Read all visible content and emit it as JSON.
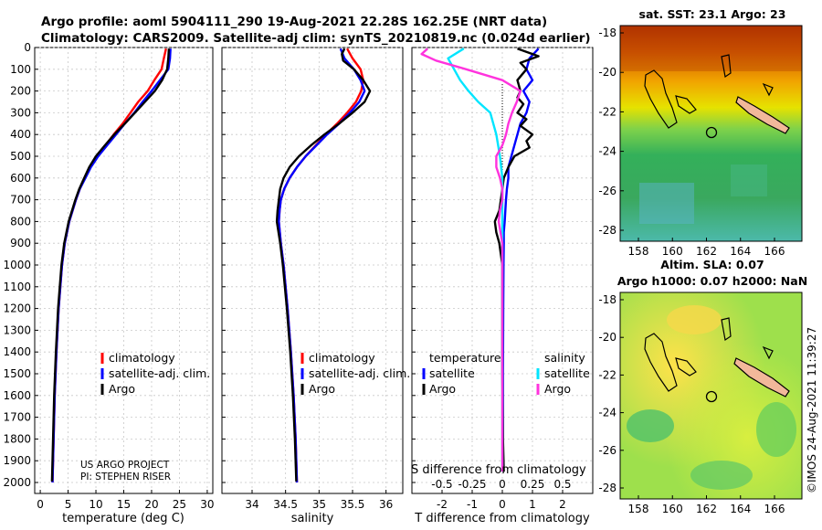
{
  "header": {
    "title_line1": "Argo profile: aoml 5904111_290 19-Aug-2021 22.28S 162.25E (NRT data)",
    "title_line2": "Climatology: CARS2009. Satellite-adj clim: synTS_20210819.nc (0.024d earlier)"
  },
  "credits": {
    "line1": "US ARGO PROJECT",
    "line2": "PI: STEPHEN RISER"
  },
  "timestamp": "©IMOS 24-Aug-2021 11:39:27",
  "colors": {
    "climatology": "#ff0000",
    "satellite": "#0000ff",
    "argo": "#000000",
    "sat_salinity": "#00e5ff",
    "argo_salinity": "#ff33dd",
    "land": "#f2b89a"
  },
  "depth_axis": {
    "ticks": [
      0,
      100,
      200,
      300,
      400,
      500,
      600,
      700,
      800,
      900,
      1000,
      1100,
      1200,
      1300,
      1400,
      1500,
      1600,
      1700,
      1800,
      1900,
      2000
    ],
    "range": [
      0,
      2000
    ]
  },
  "chart_data": [
    {
      "type": "line",
      "panel": "temperature",
      "xlabel": "temperature (deg C)",
      "xlim": [
        -1,
        31
      ],
      "xticks": [
        0,
        5,
        10,
        15,
        20,
        25,
        30
      ],
      "legend": [
        "climatology",
        "satellite-adj. clim.",
        "Argo"
      ],
      "series": [
        {
          "name": "climatology",
          "color": "#ff0000",
          "depth": [
            5,
            50,
            100,
            150,
            200,
            250,
            300,
            350,
            400,
            450,
            500,
            550,
            600,
            650,
            700,
            800,
            900,
            1000,
            1200,
            1400,
            1600,
            1800,
            2000
          ],
          "values": [
            22.6,
            22.2,
            21.8,
            20.5,
            19.3,
            17.6,
            16.2,
            14.8,
            13.2,
            11.7,
            10.2,
            9.0,
            8.0,
            7.1,
            6.4,
            5.2,
            4.4,
            3.9,
            3.3,
            2.9,
            2.6,
            2.4,
            2.2
          ]
        },
        {
          "name": "satellite-adj. clim.",
          "color": "#0000ff",
          "depth": [
            5,
            50,
            100,
            150,
            200,
            250,
            300,
            350,
            400,
            450,
            500,
            550,
            600,
            650,
            700,
            800,
            900,
            1000,
            1200,
            1400,
            1600,
            1800,
            2000
          ],
          "values": [
            23.4,
            23.3,
            23.0,
            21.5,
            20.0,
            18.4,
            16.9,
            15.2,
            13.6,
            12.0,
            10.4,
            9.1,
            8.1,
            7.1,
            6.4,
            5.2,
            4.4,
            3.9,
            3.3,
            2.9,
            2.6,
            2.4,
            2.2
          ]
        },
        {
          "name": "Argo",
          "color": "#000000",
          "depth": [
            5,
            50,
            100,
            150,
            200,
            250,
            300,
            350,
            400,
            450,
            500,
            550,
            600,
            650,
            700,
            800,
            900,
            1000,
            1200,
            1400,
            1600,
            1800,
            1995
          ],
          "values": [
            23.1,
            23.0,
            22.8,
            21.9,
            20.6,
            18.8,
            17.0,
            15.2,
            13.3,
            11.6,
            10.0,
            8.8,
            7.9,
            7.0,
            6.3,
            5.1,
            4.3,
            3.8,
            3.2,
            2.8,
            2.5,
            2.3,
            2.1
          ]
        }
      ]
    },
    {
      "type": "line",
      "panel": "salinity",
      "xlabel": "salinity",
      "xlim": [
        33.55,
        36.25
      ],
      "xticks": [
        34,
        34.5,
        35,
        35.5,
        36
      ],
      "legend": [
        "climatology",
        "satellite-adj. clim.",
        "Argo"
      ],
      "series": [
        {
          "name": "climatology",
          "color": "#ff0000",
          "depth": [
            5,
            50,
            100,
            150,
            200,
            250,
            300,
            350,
            400,
            450,
            500,
            550,
            600,
            650,
            700,
            750,
            800,
            900,
            1000,
            1200,
            1400,
            1600,
            1800,
            2000
          ],
          "values": [
            35.42,
            35.5,
            35.62,
            35.66,
            35.63,
            35.55,
            35.42,
            35.27,
            35.1,
            34.95,
            34.8,
            34.67,
            34.56,
            34.48,
            34.43,
            34.41,
            34.4,
            34.43,
            34.47,
            34.53,
            34.58,
            34.62,
            34.65,
            34.67
          ]
        },
        {
          "name": "satellite-adj. clim.",
          "color": "#0000ff",
          "depth": [
            5,
            50,
            100,
            150,
            200,
            250,
            300,
            350,
            400,
            450,
            500,
            550,
            600,
            650,
            700,
            750,
            800,
            900,
            1000,
            1200,
            1400,
            1600,
            1800,
            2000
          ],
          "values": [
            35.32,
            35.38,
            35.52,
            35.62,
            35.68,
            35.6,
            35.46,
            35.3,
            35.12,
            34.96,
            34.8,
            34.67,
            34.56,
            34.48,
            34.43,
            34.41,
            34.4,
            34.43,
            34.47,
            34.53,
            34.58,
            34.62,
            34.65,
            34.67
          ]
        },
        {
          "name": "Argo",
          "color": "#000000",
          "depth": [
            5,
            30,
            60,
            100,
            150,
            200,
            250,
            300,
            350,
            400,
            450,
            500,
            550,
            600,
            650,
            700,
            750,
            800,
            900,
            1000,
            1200,
            1400,
            1600,
            1800,
            1995
          ],
          "values": [
            35.38,
            35.34,
            35.36,
            35.52,
            35.66,
            35.76,
            35.68,
            35.5,
            35.3,
            35.08,
            34.88,
            34.7,
            34.56,
            34.47,
            34.42,
            34.4,
            34.38,
            34.37,
            34.42,
            34.46,
            34.52,
            34.57,
            34.61,
            34.64,
            34.66
          ]
        }
      ]
    },
    {
      "type": "line",
      "panel": "difference",
      "xlabel": "T difference from climatology",
      "xlabel_top": "S difference from climatology",
      "xlim": [
        -3,
        3
      ],
      "xticks": [
        -2,
        -1,
        0,
        1,
        2
      ],
      "xticks_top": [
        "-0.5",
        "-0.25",
        "0",
        "0.25",
        "0.5"
      ],
      "legend_temperature_title": "temperature",
      "legend_salinity_title": "salinity",
      "legend": [
        "satellite",
        "Argo",
        "satellite",
        "Argo"
      ],
      "series": [
        {
          "name": "temperature satellite",
          "color": "#0000ff",
          "depth": [
            5,
            50,
            100,
            150,
            200,
            250,
            300,
            350,
            400,
            450,
            500,
            550,
            600,
            650,
            700,
            750,
            800,
            850,
            900,
            1000,
            1200,
            1500,
            1800,
            1950
          ],
          "values": [
            1.2,
            0.9,
            0.8,
            1.0,
            0.7,
            0.9,
            0.8,
            0.6,
            0.5,
            0.4,
            0.3,
            0.2,
            0.2,
            0.15,
            0.12,
            0.1,
            0.08,
            0.05,
            0.05,
            0.04,
            0.03,
            0.02,
            0.02,
            0.02
          ]
        },
        {
          "name": "temperature Argo",
          "color": "#000000",
          "depth": [
            5,
            40,
            70,
            100,
            150,
            200,
            230,
            260,
            300,
            330,
            360,
            400,
            430,
            460,
            500,
            550,
            600,
            650,
            700,
            750,
            800,
            850,
            900,
            1000,
            1200,
            1500,
            1800,
            1950
          ],
          "values": [
            0.5,
            1.2,
            0.6,
            0.8,
            0.5,
            0.6,
            0.5,
            0.7,
            0.5,
            0.8,
            0.6,
            1.0,
            0.8,
            0.9,
            0.4,
            0.2,
            0.05,
            0.0,
            -0.05,
            -0.1,
            -0.25,
            -0.2,
            -0.1,
            0.0,
            0.0,
            0.0,
            0.02,
            0.05
          ]
        },
        {
          "name": "salinity satellite",
          "color": "#00e5ff",
          "depth": [
            5,
            50,
            100,
            150,
            200,
            250,
            300,
            400,
            500,
            600,
            700,
            800,
            1000,
            1500,
            1950
          ],
          "values": [
            -0.32,
            -0.45,
            -0.4,
            -0.35,
            -0.28,
            -0.2,
            -0.1,
            -0.05,
            -0.02,
            0.0,
            0.0,
            0.0,
            0.0,
            0.0,
            0.0
          ]
        },
        {
          "name": "salinity Argo",
          "color": "#ff33dd",
          "depth": [
            5,
            30,
            60,
            100,
            150,
            200,
            250,
            300,
            350,
            400,
            450,
            500,
            550,
            600,
            650,
            700,
            750,
            800,
            900,
            1000,
            1500,
            1950
          ],
          "values": [
            -0.62,
            -0.67,
            -0.55,
            -0.3,
            0.0,
            0.15,
            0.12,
            0.08,
            0.05,
            0.03,
            0.0,
            -0.05,
            -0.05,
            -0.02,
            0.0,
            0.0,
            -0.02,
            -0.03,
            0.0,
            0.0,
            0.0,
            0.0
          ]
        }
      ]
    }
  ],
  "maps": [
    {
      "title_line1": "sat. SST: 23.1 Argo: 23",
      "title_line2": "",
      "yticks": [
        "-18",
        "-20",
        "-22",
        "-24",
        "-26",
        "-28"
      ],
      "xticks": [
        "158",
        "160",
        "162",
        "164",
        "166"
      ]
    },
    {
      "title_line1": "Altim. SLA: 0.07",
      "title_line2": "Argo h1000: 0.07 h2000: NaN",
      "yticks": [
        "-18",
        "-20",
        "-22",
        "-24",
        "-26",
        "-28"
      ],
      "xticks": [
        "158",
        "160",
        "162",
        "164",
        "166"
      ]
    }
  ]
}
